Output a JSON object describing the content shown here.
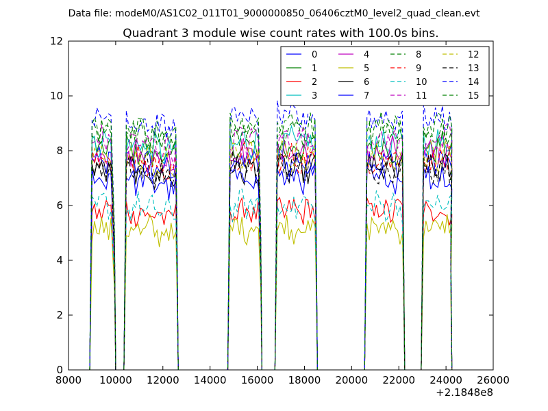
{
  "chart_data": {
    "type": "line",
    "suptitle": "Data file: modeM0/AS1C02_011T01_9000000850_06406cztM0_level2_quad_clean.evt",
    "title": "Quadrant 3 module wise count rates with 100.0s bins.",
    "xlabel": "",
    "ylabel": "",
    "x_offset_label": "+2.1848e8",
    "xlim": [
      8000,
      26000
    ],
    "ylim": [
      0,
      12
    ],
    "xticks": [
      8000,
      10000,
      12000,
      14000,
      16000,
      18000,
      20000,
      22000,
      24000,
      26000
    ],
    "xtick_labels": [
      "8000",
      "10000",
      "12000",
      "14000",
      "16000",
      "18000",
      "20000",
      "22000",
      "24000",
      "26000"
    ],
    "yticks": [
      0,
      2,
      4,
      6,
      8,
      10,
      12
    ],
    "ytick_labels": [
      "0",
      "2",
      "4",
      "6",
      "8",
      "10",
      "12"
    ],
    "legend_position": "top-right",
    "legend_columns": 4,
    "grid": false,
    "segments": [
      {
        "x_start": 9000,
        "x_end": 9800,
        "drop_to": 9950
      },
      {
        "x_start": 10450,
        "x_end": 12500,
        "drop_to": 12600
      },
      {
        "x_start": 14850,
        "x_end": 16050,
        "drop_to": 16150
      },
      {
        "x_start": 16850,
        "x_end": 18400,
        "drop_to": 18500
      },
      {
        "x_start": 20650,
        "x_end": 22100,
        "drop_to": 22200
      },
      {
        "x_start": 23050,
        "x_end": 24200,
        "drop_to": 24200
      }
    ],
    "series": [
      {
        "name": "0",
        "color": "#0000ff",
        "dash": "solid",
        "level": 7.6
      },
      {
        "name": "1",
        "color": "#008000",
        "dash": "solid",
        "level": 8.1
      },
      {
        "name": "2",
        "color": "#ff0000",
        "dash": "solid",
        "level": 5.8
      },
      {
        "name": "3",
        "color": "#00bfbf",
        "dash": "solid",
        "level": 8.3
      },
      {
        "name": "4",
        "color": "#bf00bf",
        "dash": "solid",
        "level": 7.9
      },
      {
        "name": "5",
        "color": "#bfbf00",
        "dash": "solid",
        "level": 5.2
      },
      {
        "name": "6",
        "color": "#000000",
        "dash": "solid",
        "level": 7.3
      },
      {
        "name": "7",
        "color": "#0000ff",
        "dash": "solid",
        "level": 7.0
      },
      {
        "name": "8",
        "color": "#008000",
        "dash": "dashed",
        "level": 8.7
      },
      {
        "name": "9",
        "color": "#ff0000",
        "dash": "dashed",
        "level": 7.7
      },
      {
        "name": "10",
        "color": "#00bfbf",
        "dash": "dashed",
        "level": 6.0
      },
      {
        "name": "11",
        "color": "#bf00bf",
        "dash": "dashed",
        "level": 8.4
      },
      {
        "name": "12",
        "color": "#bfbf00",
        "dash": "dashed",
        "level": 7.8
      },
      {
        "name": "13",
        "color": "#000000",
        "dash": "dashed",
        "level": 7.4
      },
      {
        "name": "14",
        "color": "#0000ff",
        "dash": "dashed",
        "level": 9.2
      },
      {
        "name": "15",
        "color": "#008000",
        "dash": "dashed",
        "level": 8.9
      }
    ]
  }
}
